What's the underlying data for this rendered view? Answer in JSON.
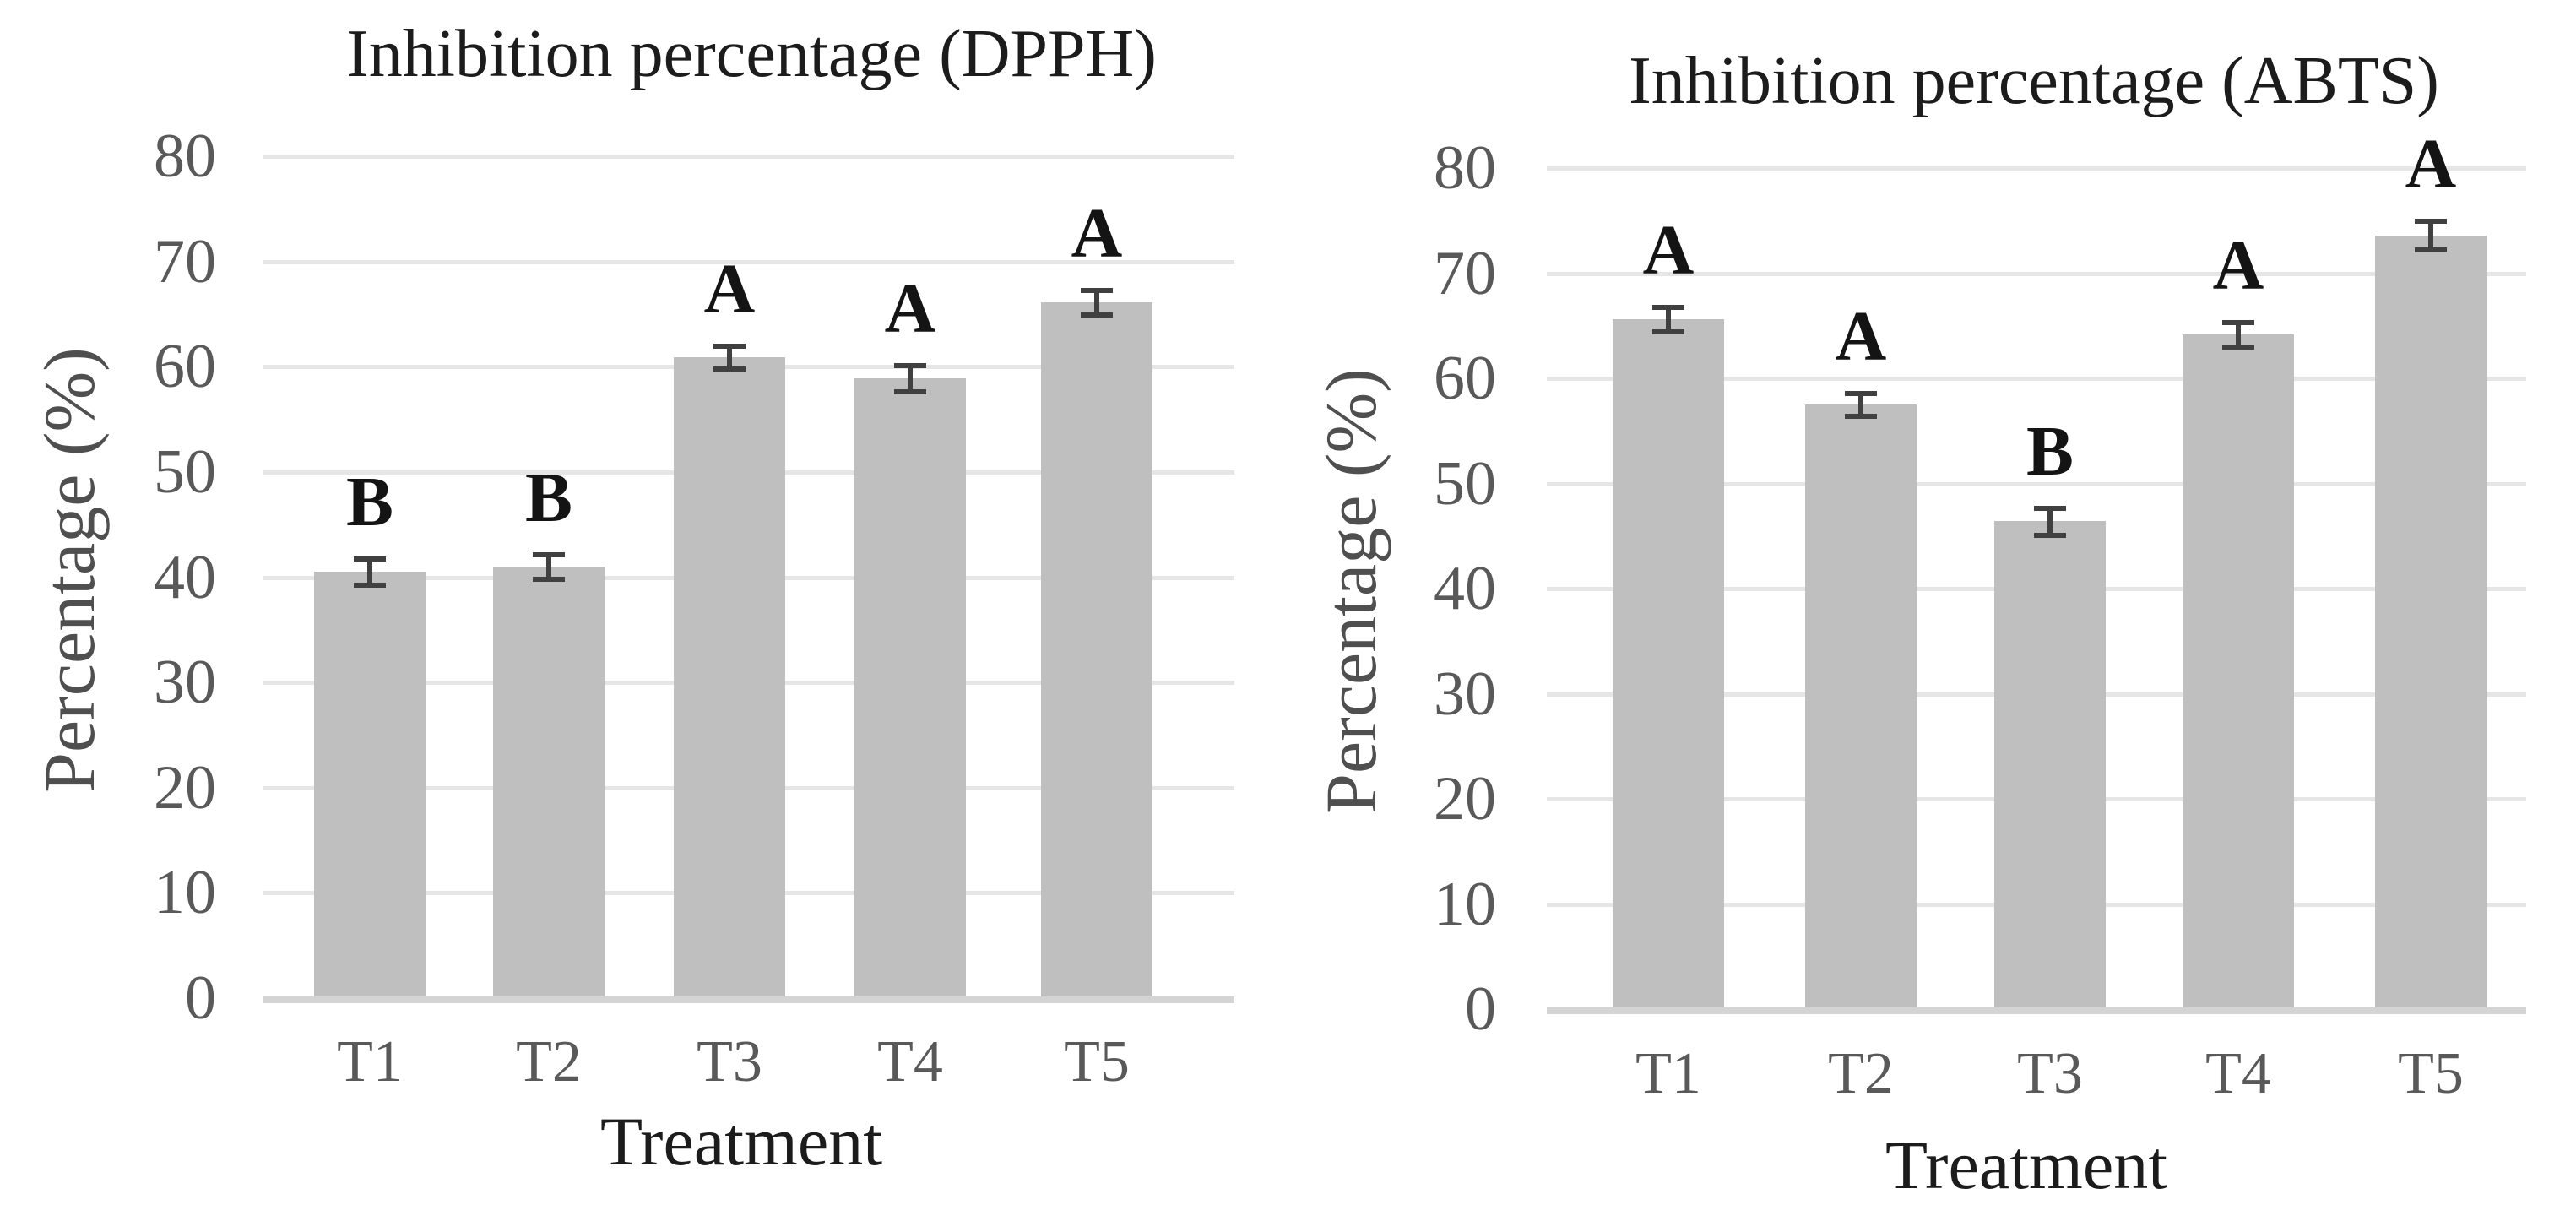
{
  "figure": {
    "background": "#ffffff",
    "description_titles": [
      "Inhibition percentage (DPPH)",
      "Inhibition percentage (ABTS)"
    ]
  },
  "colors": {
    "bar_fill": "#bfbfbf",
    "gridline": "#e6e6e6",
    "axis_line": "#d4d4d4",
    "error_bar": "#404040",
    "tick_label": "#595959",
    "category_label": "#595959",
    "y_axis_title": "#4f4f4f",
    "title_text": "#1c1c1c",
    "letter_text": "#141414"
  },
  "chart_data": [
    {
      "type": "bar",
      "title": "Inhibition percentage (DPPH)",
      "xlabel": "Treatment",
      "ylabel": "Percentage (%)",
      "categories": [
        "T1",
        "T2",
        "T3",
        "T4",
        "T5"
      ],
      "values": [
        40.5,
        41.0,
        60.9,
        58.9,
        66.1
      ],
      "errors": [
        1.3,
        1.2,
        1.1,
        1.3,
        1.2
      ],
      "letters": [
        "B",
        "B",
        "A",
        "A",
        "A"
      ],
      "y_ticks": [
        0,
        10,
        20,
        30,
        40,
        50,
        60,
        70,
        80
      ],
      "ylim": [
        0,
        80
      ],
      "grid": "horizontal",
      "legend": "none"
    },
    {
      "type": "bar",
      "title": "Inhibition percentage (ABTS)",
      "xlabel": "Treatment",
      "ylabel": "Percentage (%)",
      "categories": [
        "T1",
        "T2",
        "T3",
        "T4",
        "T5"
      ],
      "values": [
        65.6,
        57.5,
        46.4,
        64.2,
        73.6
      ],
      "errors": [
        1.2,
        1.1,
        1.3,
        1.2,
        1.4
      ],
      "letters": [
        "A",
        "A",
        "B",
        "A",
        "A"
      ],
      "y_ticks": [
        0,
        10,
        20,
        30,
        40,
        50,
        60,
        70,
        80
      ],
      "ylim": [
        0,
        80
      ],
      "grid": "horizontal",
      "legend": "none"
    }
  ]
}
